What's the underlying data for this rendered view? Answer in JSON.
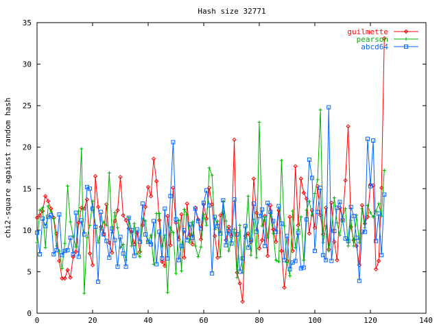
{
  "chart_data": {
    "type": "line",
    "title": "Hash size 32771",
    "xlabel": "",
    "ylabel": "chi2-square against random hash",
    "xlim": [
      0,
      140
    ],
    "ylim": [
      0,
      35
    ],
    "xticks": [
      0,
      20,
      40,
      60,
      80,
      100,
      120,
      140
    ],
    "yticks": [
      0,
      5,
      10,
      15,
      20,
      25,
      30,
      35
    ],
    "grid": false,
    "legend_position": "top-right",
    "series": [
      {
        "name": "guilmette",
        "color": "#ff0000",
        "marker": "diamond",
        "values": [
          11.5,
          11.8,
          12.3,
          14.1,
          13.5,
          12.6,
          11.5,
          9.6,
          6.3,
          4.2,
          4.2,
          5.2,
          4.3,
          6.8,
          7.4,
          10.9,
          12.7,
          12.6,
          13.7,
          7.2,
          5.8,
          16.5,
          12.8,
          10.4,
          9.5,
          13.1,
          8.5,
          7.3,
          11.1,
          12.4,
          16.4,
          11.8,
          11.2,
          10.2,
          9.8,
          8.3,
          9.7,
          7.4,
          10.6,
          12.8,
          15.2,
          14.1,
          18.6,
          15.9,
          11.2,
          6.2,
          5.7,
          11.7,
          8.2,
          15.1,
          10.9,
          8.9,
          11.9,
          6.7,
          13.2,
          9.4,
          8.3,
          12.7,
          11.3,
          8.9,
          13.1,
          11.4,
          15.1,
          13.1,
          9.3,
          6.7,
          11.8,
          12.1,
          8.8,
          10.4,
          9.3,
          20.9,
          4.9,
          3.6,
          1.4,
          9.3,
          9.6,
          8.6,
          16.2,
          12.1,
          7.8,
          8.8,
          11.7,
          6.9,
          13.0,
          10.1,
          8.6,
          12.4,
          7.5,
          3.1,
          6.3,
          11.6,
          7.5,
          17.7,
          10.6,
          16.2,
          14.5,
          13.8,
          9.6,
          12.4,
          10.3,
          15.3,
          11.8,
          9.5,
          12.7,
          7.7,
          13.3,
          8.6,
          6.4,
          12.7,
          11.3,
          16.0,
          22.5,
          10.4,
          8.8,
          8.1,
          5.8,
          13.0,
          10.8,
          11.6,
          15.5,
          15.4,
          5.3,
          6.3,
          15.1,
          33.1
        ]
      },
      {
        "name": "pearson",
        "color": "#00b000",
        "marker": "plus",
        "values": [
          8.5,
          12.4,
          12.7,
          7.9,
          12.9,
          12.2,
          11.4,
          8.1,
          7.5,
          5.4,
          8.4,
          15.3,
          11.0,
          9.3,
          8.0,
          12.3,
          19.8,
          2.4,
          9.1,
          10.6,
          13.5,
          10.6,
          8.5,
          10.1,
          11.0,
          10.6,
          16.9,
          9.7,
          12.1,
          10.3,
          7.9,
          8.3,
          6.4,
          11.5,
          8.1,
          10.8,
          7.2,
          6.8,
          11.4,
          11.1,
          8.6,
          9.4,
          5.9,
          12.0,
          12.0,
          8.1,
          9.4,
          2.5,
          10.3,
          9.7,
          4.8,
          11.2,
          5.1,
          12.5,
          11.9,
          8.5,
          11.0,
          8.1,
          6.8,
          8.0,
          11.9,
          10.6,
          17.5,
          16.6,
          10.1,
          11.1,
          6.8,
          13.5,
          11.1,
          7.5,
          8.6,
          10.1,
          4.3,
          10.6,
          4.9,
          9.0,
          14.1,
          7.0,
          11.3,
          6.7,
          23.0,
          10.5,
          11.6,
          9.1,
          12.0,
          9.6,
          6.4,
          6.2,
          18.4,
          10.5,
          6.1,
          4.5,
          12.3,
          7.9,
          10.1,
          11.6,
          6.4,
          12.4,
          13.5,
          11.8,
          14.4,
          16.1,
          24.5,
          8.5,
          10.5,
          7.5,
          9.9,
          13.9,
          10.9,
          9.4,
          11.6,
          12.6,
          8.1,
          11.2,
          8.1,
          11.8,
          8.5,
          12.6,
          10.3,
          13.0,
          12.1,
          11.6,
          12.3,
          13.2,
          11.7,
          17.2
        ]
      },
      {
        "name": "abcd64",
        "color": "#0066ff",
        "marker": "square",
        "values": [
          9.7,
          7.1,
          11.4,
          10.5,
          11.6,
          11.8,
          7.1,
          7.6,
          11.9,
          7.0,
          7.5,
          7.6,
          9.1,
          7.1,
          12.1,
          6.8,
          11.2,
          9.5,
          15.2,
          15.0,
          12.6,
          10.4,
          3.8,
          12.2,
          9.5,
          8.7,
          6.7,
          10.2,
          8.8,
          5.6,
          9.2,
          7.2,
          5.6,
          11.5,
          10.0,
          6.9,
          10.1,
          8.6,
          13.2,
          9.5,
          8.6,
          8.3,
          11.1,
          5.9,
          9.8,
          6.6,
          12.6,
          6.6,
          14.1,
          20.6,
          11.3,
          6.4,
          8.1,
          10.0,
          8.8,
          10.7,
          9.1,
          12.6,
          11.1,
          10.2,
          13.3,
          14.8,
          13.0,
          4.8,
          11.6,
          10.5,
          9.6,
          13.6,
          8.2,
          9.9,
          8.4,
          13.7,
          9.5,
          5.0,
          6.6,
          10.5,
          7.9,
          8.8,
          13.2,
          9.8,
          11.7,
          12.5,
          8.1,
          13.3,
          12.2,
          11.1,
          9.8,
          12.9,
          10.8,
          6.4,
          9.3,
          5.3,
          6.1,
          6.3,
          9.7,
          5.4,
          5.5,
          11.3,
          18.5,
          16.3,
          7.5,
          12.2,
          15.1,
          7.0,
          6.4,
          24.8,
          6.3,
          9.9,
          12.7,
          13.4,
          11.2,
          9.0,
          8.7,
          12.8,
          11.7,
          9.1,
          3.9,
          9.8,
          9.8,
          21.0,
          15.3,
          20.8,
          8.7,
          12.0,
          7.0,
          14.3
        ]
      }
    ]
  }
}
